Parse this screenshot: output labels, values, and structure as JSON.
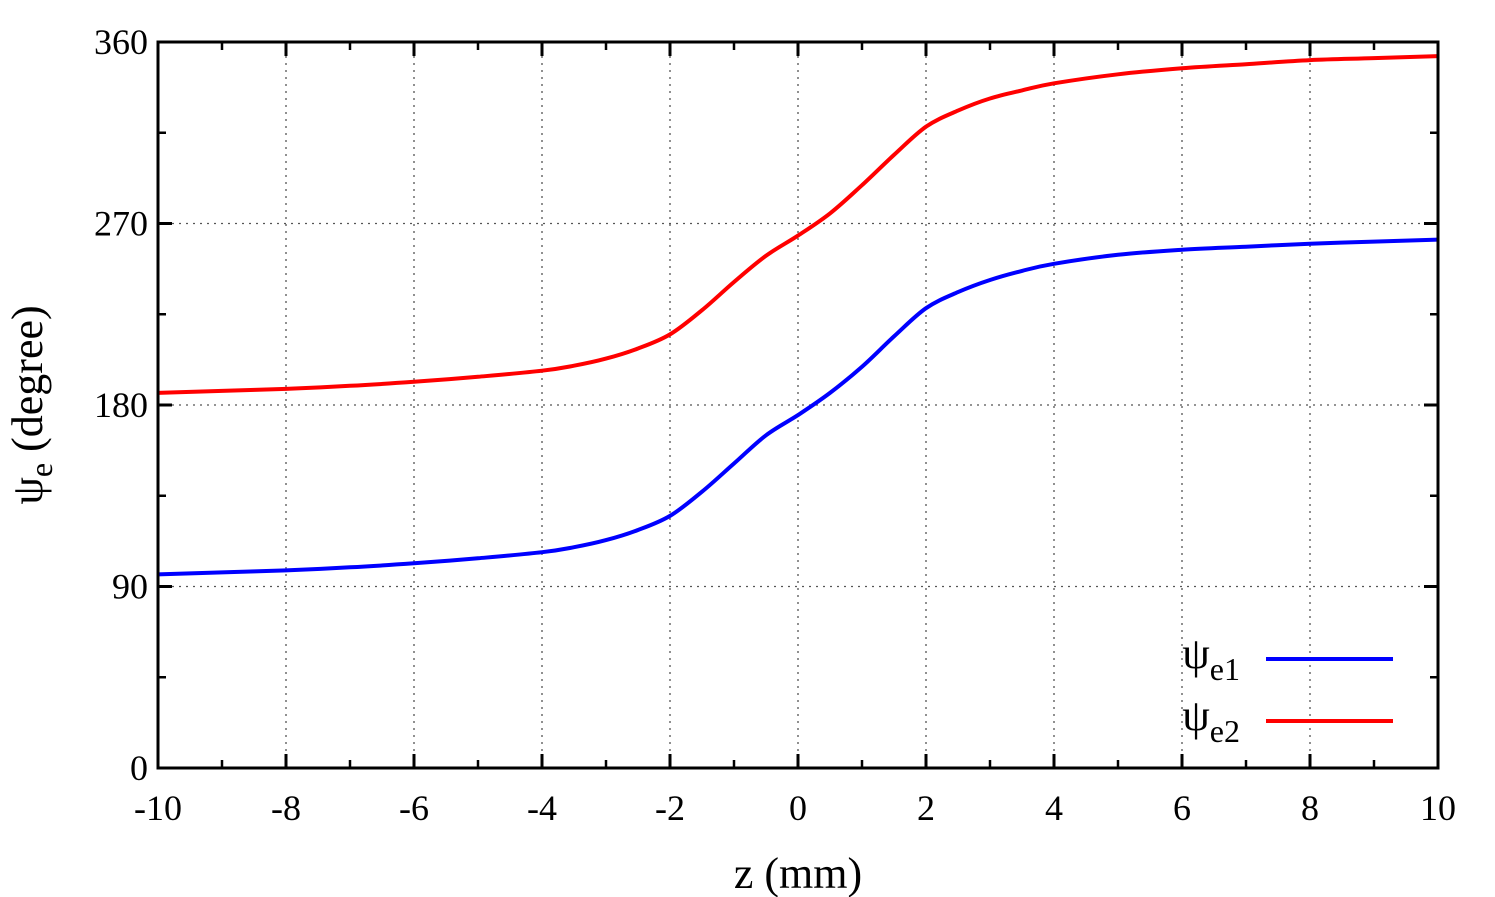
{
  "chart_data": {
    "type": "line",
    "xlabel": "z (mm)",
    "ylabel": {
      "symbol": "ψ",
      "sub": "e",
      "rest": " (degree)"
    },
    "xlim": [
      -10,
      10
    ],
    "ylim": [
      0,
      360
    ],
    "xticks": [
      -10,
      -8,
      -6,
      -4,
      -2,
      0,
      2,
      4,
      6,
      8,
      10
    ],
    "yticks": [
      0,
      90,
      180,
      270,
      360
    ],
    "xtick_labels": [
      "-10",
      "-8",
      "-6",
      "-4",
      "-2",
      "0",
      "2",
      "4",
      "6",
      "8",
      "10"
    ],
    "ytick_labels": [
      "0",
      "90",
      "180",
      "270",
      "360"
    ],
    "grid": true,
    "legend_position": "bottom-right",
    "series": [
      {
        "name": "ψe1",
        "label": {
          "symbol": "ψ",
          "sub": "e1"
        },
        "color": "#0000ff",
        "x": [
          -10,
          -9,
          -8,
          -7,
          -6,
          -5,
          -4,
          -3.5,
          -3,
          -2.5,
          -2,
          -1.5,
          -1,
          -0.5,
          0,
          0.5,
          1,
          1.5,
          2,
          2.5,
          3,
          3.5,
          4,
          5,
          6,
          7,
          8,
          9,
          10
        ],
        "y": [
          96,
          97,
          98,
          99.5,
          101.5,
          104,
          107,
          109.5,
          113,
          118,
          125,
          137,
          151,
          165,
          175,
          186,
          199,
          214,
          228,
          236,
          242,
          246.5,
          250,
          254.5,
          257,
          258.5,
          260,
          261,
          262
        ]
      },
      {
        "name": "ψe2",
        "label": {
          "symbol": "ψ",
          "sub": "e2"
        },
        "color": "#ff0000",
        "x": [
          -10,
          -9,
          -8,
          -7,
          -6,
          -5,
          -4,
          -3.5,
          -3,
          -2.5,
          -2,
          -1.5,
          -1,
          -0.5,
          0,
          0.5,
          1,
          1.5,
          2,
          2.5,
          3,
          3.5,
          4,
          5,
          6,
          7,
          8,
          9,
          10
        ],
        "y": [
          186,
          187,
          188,
          189.5,
          191.5,
          194,
          197,
          199.5,
          203,
          208,
          215,
          227,
          241,
          254,
          264,
          275,
          289,
          304,
          318,
          326,
          332,
          336,
          339.5,
          344,
          347,
          349,
          351,
          352,
          353
        ]
      }
    ]
  }
}
